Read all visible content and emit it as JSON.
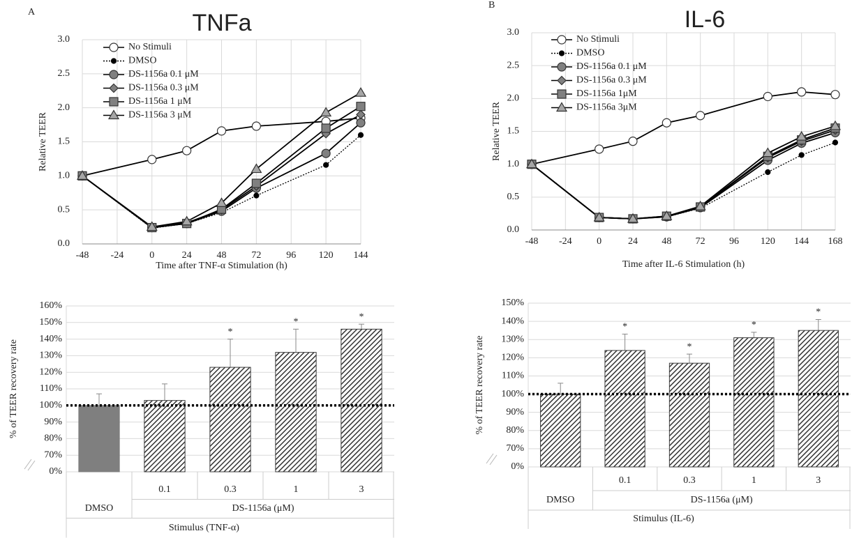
{
  "chart_data": [
    {
      "type": "line",
      "panel": "A",
      "title": "TNFa",
      "x_label": "Time after TNF-α Stimulation (h)",
      "y_label": "Relative TEER",
      "x": [
        -48,
        0,
        24,
        48,
        72,
        120,
        144
      ],
      "xlim": [
        -48,
        144
      ],
      "xticks": [
        -48,
        -24,
        0,
        24,
        48,
        72,
        96,
        120,
        144
      ],
      "ylim": [
        0,
        3
      ],
      "yticks": [
        {
          "value": 0,
          "label": "0.0"
        },
        0.5,
        {
          "value": 1,
          "label": "1.0"
        },
        1.5,
        {
          "value": 2,
          "label": "2.0"
        },
        2.5,
        {
          "value": 3,
          "label": "3.0"
        }
      ],
      "grid": true,
      "legend": "upper left",
      "series": [
        {
          "name": "No Stimuli",
          "color": "#ffffff",
          "marker": "circle",
          "dash": "solid",
          "values": [
            1.0,
            1.24,
            1.37,
            1.66,
            1.73,
            1.8,
            1.85
          ]
        },
        {
          "name": "DMSO",
          "color": "#000000",
          "marker": "dot",
          "dash": "dotted",
          "values": [
            1.0,
            0.23,
            0.3,
            0.46,
            0.71,
            1.16,
            1.6
          ]
        },
        {
          "name": "DS-1156a 0.1 μM",
          "color": "#808080",
          "marker": "circle",
          "dash": "solid",
          "values": [
            1.0,
            0.24,
            0.3,
            0.48,
            0.82,
            1.33,
            1.78
          ]
        },
        {
          "name": "DS-1156a 0.3 μM",
          "color": "#808080",
          "marker": "diamond",
          "dash": "solid",
          "values": [
            1.0,
            0.24,
            0.31,
            0.5,
            0.85,
            1.62,
            1.9
          ]
        },
        {
          "name": "DS-1156a 1 μM",
          "color": "#808080",
          "marker": "square",
          "dash": "solid",
          "values": [
            1.0,
            0.24,
            0.3,
            0.51,
            0.89,
            1.7,
            2.02
          ]
        },
        {
          "name": "DS-1156a 3 μM",
          "color": "#a6a6a6",
          "marker": "triangle",
          "dash": "solid",
          "values": [
            1.0,
            0.25,
            0.33,
            0.6,
            1.1,
            1.93,
            2.22
          ]
        }
      ]
    },
    {
      "type": "line",
      "panel": "B",
      "title": "IL-6",
      "x_label": "Time after IL-6 Stimulation (h)",
      "y_label": "Relative TEER",
      "x": [
        -48,
        0,
        24,
        48,
        72,
        120,
        144,
        168
      ],
      "xlim": [
        -48,
        168
      ],
      "xticks": [
        -48,
        -24,
        0,
        24,
        48,
        72,
        96,
        120,
        144,
        168
      ],
      "ylim": [
        0,
        3
      ],
      "yticks": [
        {
          "value": 0,
          "label": "0.0"
        },
        0.5,
        {
          "value": 1,
          "label": "1.0"
        },
        1.5,
        {
          "value": 2,
          "label": "2.0"
        },
        2.5,
        {
          "value": 3,
          "label": "3.0"
        }
      ],
      "grid": true,
      "legend": "upper left",
      "series": [
        {
          "name": "No Stimuli",
          "color": "#ffffff",
          "marker": "circle",
          "dash": "solid",
          "values": [
            1.0,
            1.23,
            1.35,
            1.63,
            1.74,
            2.03,
            2.1,
            2.06
          ]
        },
        {
          "name": "DMSO",
          "color": "#000000",
          "marker": "dot",
          "dash": "dotted",
          "values": [
            1.0,
            0.19,
            0.17,
            0.2,
            0.33,
            0.88,
            1.14,
            1.33
          ]
        },
        {
          "name": "DS-1156a 0.1 μM",
          "color": "#808080",
          "marker": "circle",
          "dash": "solid",
          "values": [
            1.0,
            0.19,
            0.17,
            0.2,
            0.34,
            1.06,
            1.32,
            1.48
          ]
        },
        {
          "name": "DS-1156a 0.3 μM",
          "color": "#808080",
          "marker": "diamond",
          "dash": "solid",
          "values": [
            1.0,
            0.19,
            0.17,
            0.2,
            0.35,
            1.1,
            1.35,
            1.52
          ]
        },
        {
          "name": "DS-1156a 1μM",
          "color": "#808080",
          "marker": "square",
          "dash": "solid",
          "values": [
            1.0,
            0.19,
            0.17,
            0.21,
            0.35,
            1.12,
            1.37,
            1.55
          ]
        },
        {
          "name": "DS-1156a 3μM",
          "color": "#a6a6a6",
          "marker": "triangle",
          "dash": "solid",
          "values": [
            1.0,
            0.19,
            0.17,
            0.21,
            0.36,
            1.17,
            1.42,
            1.58
          ]
        }
      ]
    },
    {
      "type": "bar",
      "y_label": "% of TEER  recovery rate",
      "categories": [
        "DMSO",
        "0.1",
        "0.3",
        "1",
        "3"
      ],
      "x_group_label": "DS-1156a (μM)",
      "x_label": "Stimulus (TNF-α)",
      "values": [
        100,
        103,
        123,
        132,
        146
      ],
      "errors": [
        7,
        10,
        17,
        14,
        3
      ],
      "annotations": [
        null,
        null,
        "*",
        "*",
        "*"
      ],
      "colors": [
        "#7f7f7f",
        "#3a3a3a",
        "#3a3a3a",
        "#3a3a3a",
        "#3a3a3a"
      ],
      "hatch": [
        false,
        true,
        true,
        true,
        true
      ],
      "reference_line": 100,
      "axis_break": true,
      "grid": true,
      "ylim": [
        60,
        160
      ],
      "yticks": [
        {
          "value": 0,
          "label": "0%"
        },
        {
          "value": 70,
          "label": "70%"
        },
        {
          "value": 80,
          "label": "80%"
        },
        {
          "value": 90,
          "label": "90%"
        },
        {
          "value": 100,
          "label": "100%"
        },
        {
          "value": 110,
          "label": "110%"
        },
        {
          "value": 120,
          "label": "120%"
        },
        {
          "value": 130,
          "label": "130%"
        },
        {
          "value": 140,
          "label": "140%"
        },
        {
          "value": 150,
          "label": "150%"
        },
        {
          "value": 160,
          "label": "160%"
        }
      ]
    },
    {
      "type": "bar",
      "y_label": "% of TEER  recovery rate",
      "categories": [
        "DMSO",
        "0.1",
        "0.3",
        "1",
        "3"
      ],
      "x_group_label": "DS-1156a (μM)",
      "x_label": "Stimulus (IL-6)",
      "values": [
        100,
        124,
        117,
        131,
        135
      ],
      "errors": [
        6,
        9,
        5,
        3,
        6
      ],
      "annotations": [
        null,
        "*",
        "*",
        "*",
        "*"
      ],
      "colors": [
        "#3a3a3a",
        "#3a3a3a",
        "#3a3a3a",
        "#3a3a3a",
        "#3a3a3a"
      ],
      "hatch": [
        true,
        true,
        true,
        true,
        true
      ],
      "reference_line": 100,
      "axis_break": true,
      "grid": true,
      "ylim": [
        60,
        150
      ],
      "yticks": [
        {
          "value": 0,
          "label": "0%"
        },
        {
          "value": 70,
          "label": "70%"
        },
        {
          "value": 80,
          "label": "80%"
        },
        {
          "value": 90,
          "label": "90%"
        },
        {
          "value": 100,
          "label": "100%"
        },
        {
          "value": 110,
          "label": "110%"
        },
        {
          "value": 120,
          "label": "120%"
        },
        {
          "value": 130,
          "label": "130%"
        },
        {
          "value": 140,
          "label": "140%"
        },
        {
          "value": 150,
          "label": "150%"
        }
      ]
    }
  ]
}
